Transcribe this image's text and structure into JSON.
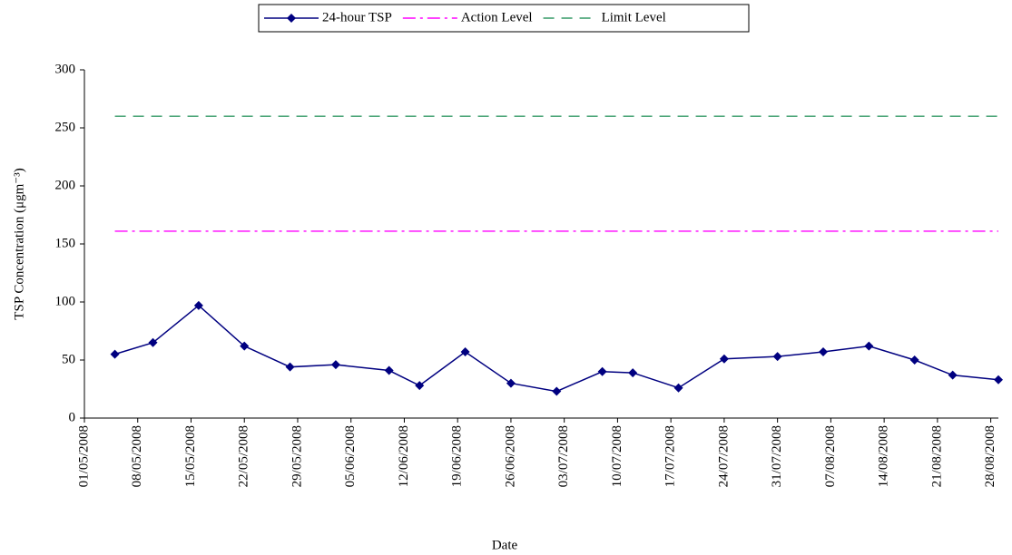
{
  "chart_data": {
    "type": "line",
    "x_label": "Date",
    "y_label": "TSP Concentration (μgm⁻³)",
    "x": [
      "2008-05-05",
      "2008-05-10",
      "2008-05-16",
      "2008-05-22",
      "2008-05-28",
      "2008-06-03",
      "2008-06-10",
      "2008-06-14",
      "2008-06-20",
      "2008-06-26",
      "2008-07-02",
      "2008-07-08",
      "2008-07-12",
      "2008-07-18",
      "2008-07-24",
      "2008-07-31",
      "2008-08-06",
      "2008-08-12",
      "2008-08-18",
      "2008-08-23",
      "2008-08-29"
    ],
    "series": [
      {
        "name": "24-hour TSP",
        "color": "#000080",
        "style": "solid-diamond",
        "values": [
          55,
          65,
          97,
          62,
          44,
          46,
          41,
          28,
          57,
          30,
          23,
          40,
          39,
          26,
          51,
          53,
          57,
          62,
          50,
          37,
          33
        ]
      },
      {
        "name": "Action Level",
        "color": "#ff00ff",
        "style": "dashdot",
        "x": [
          "2008-05-05",
          "2008-08-29"
        ],
        "values": [
          161,
          161
        ]
      },
      {
        "name": "Limit Level",
        "color": "#339966",
        "style": "dashed",
        "x": [
          "2008-05-05",
          "2008-08-29"
        ],
        "values": [
          260,
          260
        ]
      }
    ],
    "xlim": [
      "2008-05-01",
      "2008-08-29"
    ],
    "xticks": [
      {
        "value": "2008-05-01",
        "label": "01/05/2008"
      },
      {
        "value": "2008-05-08",
        "label": "08/05/2008"
      },
      {
        "value": "2008-05-15",
        "label": "15/05/2008"
      },
      {
        "value": "2008-05-22",
        "label": "22/05/2008"
      },
      {
        "value": "2008-05-29",
        "label": "29/05/2008"
      },
      {
        "value": "2008-06-05",
        "label": "05/06/2008"
      },
      {
        "value": "2008-06-12",
        "label": "12/06/2008"
      },
      {
        "value": "2008-06-19",
        "label": "19/06/2008"
      },
      {
        "value": "2008-06-26",
        "label": "26/06/2008"
      },
      {
        "value": "2008-07-03",
        "label": "03/07/2008"
      },
      {
        "value": "2008-07-10",
        "label": "10/07/2008"
      },
      {
        "value": "2008-07-17",
        "label": "17/07/2008"
      },
      {
        "value": "2008-07-24",
        "label": "24/07/2008"
      },
      {
        "value": "2008-07-31",
        "label": "31/07/2008"
      },
      {
        "value": "2008-08-07",
        "label": "07/08/2008"
      },
      {
        "value": "2008-08-14",
        "label": "14/08/2008"
      },
      {
        "value": "2008-08-21",
        "label": "21/08/2008"
      },
      {
        "value": "2008-08-28",
        "label": "28/08/2008"
      }
    ],
    "ylim": [
      0,
      300
    ],
    "yticks": [
      0,
      50,
      100,
      150,
      200,
      250,
      300
    ],
    "grid": false,
    "legend": "top"
  }
}
